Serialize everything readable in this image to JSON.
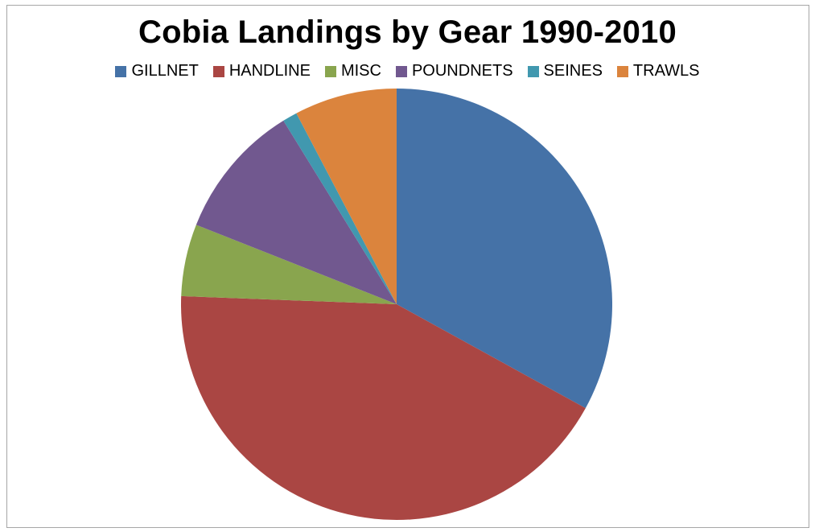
{
  "chart_data": {
    "type": "pie",
    "title": "Cobia Landings by Gear 1990-2010",
    "legend_position": "top",
    "labels": [
      "GILLNET",
      "HANDLINE",
      "MISC",
      "POUNDNETS",
      "SEINES",
      "TRAWLS"
    ],
    "values": [
      33.0,
      42.6,
      5.4,
      10.2,
      1.1,
      7.7
    ],
    "unit": "percent share (estimated)",
    "colors": [
      "#4572a7",
      "#aa4643",
      "#89a54e",
      "#71588f",
      "#4198af",
      "#db843d"
    ]
  }
}
